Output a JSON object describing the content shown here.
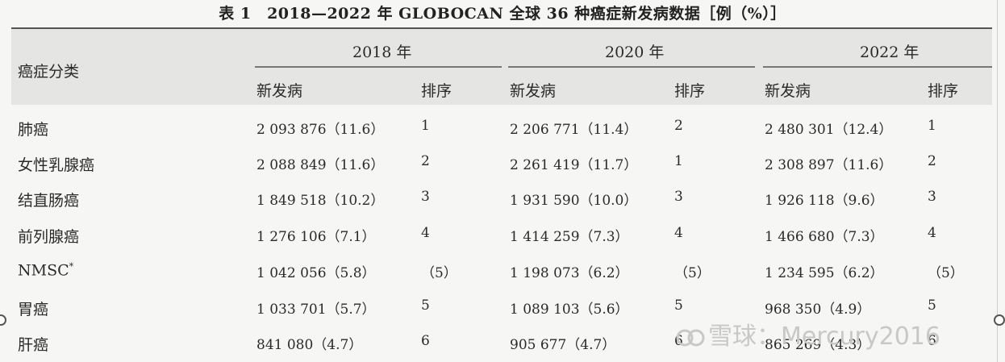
{
  "title": "表 1　2018—2022 年 GLOBOCAN 全球 36 种癌症新发病数据［例（%）］",
  "header": {
    "category": "癌症分类",
    "years": [
      "2018 年",
      "2020 年",
      "2022 年"
    ],
    "new_cases": "新发病",
    "rank": "排序"
  },
  "rows": [
    {
      "name": "肺癌",
      "sup": "",
      "c2018": "2 093 876（11.6）",
      "r2018": "1",
      "c2020": "2 206 771（11.4）",
      "r2020": "2",
      "c2022": "2 480 301（12.4）",
      "r2022": "1"
    },
    {
      "name": "女性乳腺癌",
      "sup": "",
      "c2018": "2 088 849（11.6）",
      "r2018": "2",
      "c2020": "2 261 419（11.7）",
      "r2020": "1",
      "c2022": "2 308 897（11.6）",
      "r2022": "2"
    },
    {
      "name": "结直肠癌",
      "sup": "",
      "c2018": "1 849 518（10.2）",
      "r2018": "3",
      "c2020": "1 931 590（10.0）",
      "r2020": "3",
      "c2022": "1 926 118（9.6）",
      "r2022": "3"
    },
    {
      "name": "前列腺癌",
      "sup": "",
      "c2018": "1 276 106（7.1）",
      "r2018": "4",
      "c2020": "1 414 259（7.3）",
      "r2020": "4",
      "c2022": "1 466 680（7.3）",
      "r2022": "4"
    },
    {
      "name": "NMSC",
      "sup": "*",
      "c2018": "1 042 056（5.8）",
      "r2018": "（5）",
      "c2020": "1 198 073（6.2）",
      "r2020": "（5）",
      "c2022": "1 234 595（6.2）",
      "r2022": "（5）"
    },
    {
      "name": "胃癌",
      "sup": "",
      "c2018": "1 033 701（5.7）",
      "r2018": "5",
      "c2020": "1 089 103（5.6）",
      "r2020": "5",
      "c2022": "968 350（4.9）",
      "r2022": "5"
    },
    {
      "name": "肝癌",
      "sup": "",
      "c2018": "841 080（4.7）",
      "r2018": "6",
      "c2020": "905 677（4.7）",
      "r2020": "6",
      "c2022": "865 269（4.3）",
      "r2022": "6"
    }
  ],
  "watermark": "雪球：Mercury2016"
}
